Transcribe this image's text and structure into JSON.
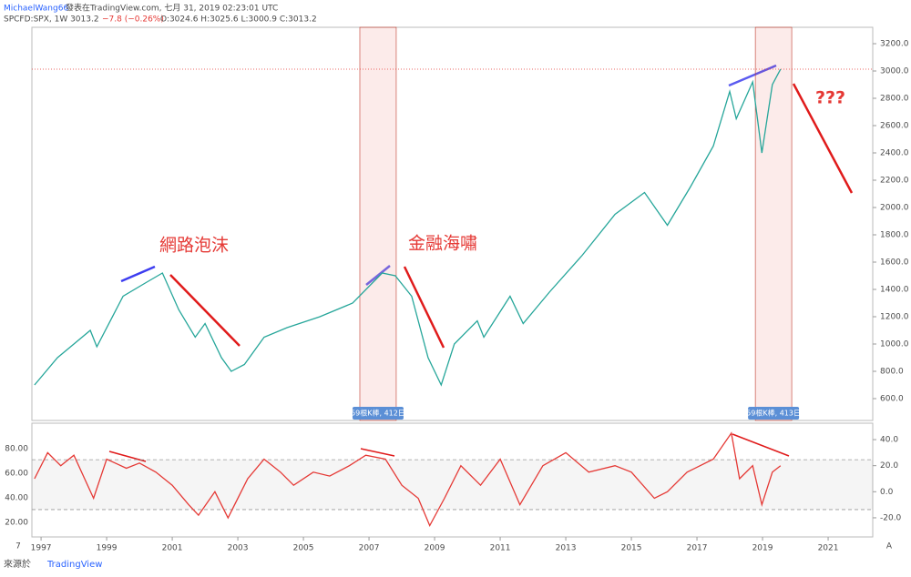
{
  "header": {
    "author": "MichaelWang66",
    "published": "發表在TradingView.com, 七月 31, 2019 02:23:01 UTC",
    "symbol": "SPCFD:SPX, 1W 3013.2",
    "change": "−7.8 (−0.26%)",
    "ohlc": "O:3024.6 H:3025.6 L:3000.9 C:3013.2"
  },
  "footer": {
    "source": "來源於",
    "brand": "TradingView",
    "corner_left": "7",
    "corner_right": "A"
  },
  "chart_data": [
    {
      "type": "line",
      "xlim": [
        1996.72,
        2022.36
      ],
      "xticks": [
        1997,
        1999,
        2001,
        2003,
        2005,
        2007,
        2009,
        2011,
        2013,
        2015,
        2017,
        2019,
        2021
      ],
      "ylim": [
        440,
        3320
      ],
      "yticks": [
        {
          "value": 600,
          "label": "600.0"
        },
        {
          "value": 800,
          "label": "800.0"
        },
        {
          "value": 1000,
          "label": "1000.0"
        },
        {
          "value": 1200,
          "label": "1200.0"
        },
        {
          "value": 1400,
          "label": "1400.0"
        },
        {
          "value": 1600,
          "label": "1600.0"
        },
        {
          "value": 1800,
          "label": "1800.0"
        },
        {
          "value": 2000,
          "label": "2000.0"
        },
        {
          "value": 2200,
          "label": "2200.0"
        },
        {
          "value": 2400,
          "label": "2400.0"
        },
        {
          "value": 2600,
          "label": "2600.0"
        },
        {
          "value": 2800,
          "label": "2800.0"
        },
        {
          "value": 3000,
          "label": "3000.0"
        },
        {
          "value": 3200,
          "label": "3200.0"
        }
      ],
      "x": [
        1996.8,
        1997.5,
        1998.5,
        1998.7,
        1999.5,
        2000.2,
        2000.7,
        2001.2,
        2001.7,
        2002.0,
        2002.5,
        2002.8,
        2003.2,
        2003.8,
        2004.5,
        2005.5,
        2006.5,
        2007.4,
        2007.8,
        2008.3,
        2008.8,
        2009.2,
        2009.6,
        2010.3,
        2010.5,
        2011.3,
        2011.7,
        2012.5,
        2013.5,
        2014.5,
        2015.4,
        2016.1,
        2016.8,
        2017.5,
        2018.0,
        2018.2,
        2018.7,
        2018.98,
        2019.3,
        2019.55
      ],
      "series": [
        {
          "name": "SPX",
          "color": "#26a69a",
          "values": [
            700,
            900,
            1100,
            980,
            1350,
            1450,
            1520,
            1250,
            1050,
            1150,
            900,
            800,
            850,
            1050,
            1120,
            1200,
            1300,
            1520,
            1500,
            1350,
            900,
            700,
            1000,
            1170,
            1050,
            1350,
            1150,
            1380,
            1650,
            1950,
            2110,
            1870,
            2150,
            2450,
            2850,
            2650,
            2920,
            2400,
            2900,
            3013
          ]
        }
      ],
      "last_price": 3013.2,
      "ranges": [
        {
          "start": 2006.72,
          "end": 2007.83,
          "label": "59根K棒, 412日"
        },
        {
          "start": 2018.78,
          "end": 2019.89,
          "label": "59根K棒, 413日"
        }
      ],
      "annotations": [
        "網路泡沫",
        "金融海嘯",
        "???"
      ]
    },
    {
      "type": "line",
      "ylim": [
        8.1,
        100.7
      ],
      "yticks": [
        {
          "value": 80,
          "label": "80.00"
        },
        {
          "value": 60,
          "label": "60.00"
        },
        {
          "value": 40,
          "label": "40.00"
        },
        {
          "value": 20,
          "label": "20.00"
        }
      ],
      "y2lim": [
        -34.7,
        52.6
      ],
      "y2ticks": [
        {
          "value": 40,
          "label": "40.0"
        },
        {
          "value": 20,
          "label": "20.0"
        },
        {
          "value": 0,
          "label": "0.0"
        },
        {
          "value": -20,
          "label": "-20.0"
        }
      ],
      "levels": [
        24.6,
        -13.7
      ],
      "x": [
        1996.8,
        1997.2,
        1997.6,
        1998.0,
        1998.6,
        1999.0,
        1999.6,
        2000.0,
        2000.5,
        2001.0,
        2001.5,
        2001.8,
        2002.3,
        2002.7,
        2003.3,
        2003.8,
        2004.3,
        2004.7,
        2005.3,
        2005.8,
        2006.4,
        2006.9,
        2007.5,
        2008.0,
        2008.5,
        2008.85,
        2009.3,
        2009.8,
        2010.4,
        2011.0,
        2011.6,
        2012.3,
        2013.0,
        2013.7,
        2014.5,
        2015.0,
        2015.7,
        2016.1,
        2016.7,
        2017.5,
        2018.05,
        2018.3,
        2018.7,
        2018.98,
        2019.3,
        2019.55
      ],
      "series": [
        {
          "name": "Oscillator",
          "color": "#e53935",
          "axis": "y2",
          "values": [
            10,
            30,
            20,
            28,
            -5,
            25,
            18,
            22,
            15,
            5,
            -10,
            -18,
            0,
            -20,
            10,
            25,
            15,
            5,
            15,
            12,
            20,
            28,
            25,
            5,
            -5,
            -26,
            -5,
            20,
            5,
            25,
            -10,
            20,
            30,
            15,
            20,
            15,
            -5,
            0,
            15,
            25,
            45,
            10,
            20,
            -10,
            15,
            20
          ]
        }
      ]
    }
  ]
}
